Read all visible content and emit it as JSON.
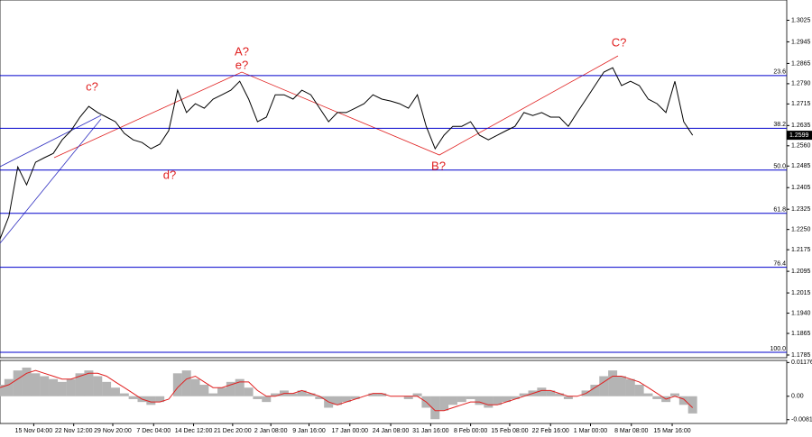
{
  "chart_data": {
    "type": "line",
    "x": [
      0,
      1,
      2,
      3,
      4,
      5,
      6,
      7,
      8,
      9,
      10,
      11,
      12,
      13,
      14,
      15,
      16,
      17,
      18,
      19,
      20,
      21,
      22,
      23,
      24,
      25,
      26,
      27,
      28,
      29,
      30,
      31,
      32,
      33,
      34,
      35,
      36,
      37,
      38,
      39,
      40,
      41,
      42,
      43,
      44,
      45,
      46,
      47,
      48,
      49,
      50,
      51,
      52,
      53,
      54,
      55,
      56,
      57,
      58,
      59,
      60,
      61,
      62,
      63,
      64,
      65,
      66,
      67,
      68,
      69,
      70,
      71,
      72,
      73,
      74,
      75,
      76,
      77,
      78
    ],
    "series": [
      {
        "color": "#000000",
        "values": [
          1.2215,
          1.2298,
          1.2482,
          1.2415,
          1.2499,
          1.2516,
          1.2532,
          1.2582,
          1.2616,
          1.2666,
          1.2706,
          1.2683,
          1.2666,
          1.2649,
          1.2606,
          1.2582,
          1.2572,
          1.2549,
          1.2566,
          1.2616,
          1.2766,
          1.2683,
          1.2716,
          1.2699,
          1.2733,
          1.2749,
          1.2766,
          1.2799,
          1.2733,
          1.2649,
          1.2666,
          1.2749,
          1.2749,
          1.2733,
          1.2766,
          1.2749,
          1.2699,
          1.2649,
          1.2683,
          1.2683,
          1.2699,
          1.2716,
          1.2749,
          1.2733,
          1.2726,
          1.2716,
          1.2699,
          1.2749,
          1.2632,
          1.2549,
          1.2599,
          1.2632,
          1.2632,
          1.2649,
          1.2599,
          1.2582,
          1.2599,
          1.2616,
          1.2632,
          1.2683,
          1.2672,
          1.2683,
          1.2666,
          1.2666,
          1.2632,
          1.2683,
          1.2733,
          1.2783,
          1.2833,
          1.2849,
          1.2783,
          1.2799,
          1.2783,
          1.2733,
          1.2716,
          1.2683,
          1.2799,
          1.2649,
          1.2599
        ]
      }
    ],
    "xlim": [
      0,
      88.6
    ],
    "xticks": [
      {
        "value": 3.8,
        "label": "15 Nov 04:00"
      },
      {
        "value": 8.3,
        "label": "22 Nov 12:00"
      },
      {
        "value": 12.7,
        "label": "29 Nov 20:00"
      },
      {
        "value": 17.3,
        "label": "7 Dec 04:00"
      },
      {
        "value": 21.8,
        "label": "14 Dec 12:00"
      },
      {
        "value": 26.2,
        "label": "21 Dec 20:00"
      },
      {
        "value": 30.5,
        "label": "2 Jan 08:00"
      },
      {
        "value": 34.8,
        "label": "9 Jan 16:00"
      },
      {
        "value": 39.4,
        "label": "17 Jan 00:00"
      },
      {
        "value": 44,
        "label": "24 Jan 08:00"
      },
      {
        "value": 48.5,
        "label": "31 Jan 16:00"
      },
      {
        "value": 53,
        "label": "8 Feb 00:00"
      },
      {
        "value": 57.4,
        "label": "15 Feb 08:00"
      },
      {
        "value": 62,
        "label": "22 Feb 16:00"
      },
      {
        "value": 66.5,
        "label": "1 Mar 00:00"
      },
      {
        "value": 71.1,
        "label": "8 Mar 08:00"
      },
      {
        "value": 75.7,
        "label": "15 Mar 16:00"
      }
    ],
    "ylim": [
      1.1775,
      1.31
    ],
    "yticks": [
      {
        "value": 1.3025,
        "label": "1.3025"
      },
      {
        "value": 1.2945,
        "label": "1.2945"
      },
      {
        "value": 1.2865,
        "label": "1.2865"
      },
      {
        "value": 1.279,
        "label": "1.2790"
      },
      {
        "value": 1.2715,
        "label": "1.2715"
      },
      {
        "value": 1.2635,
        "label": "1.2635"
      },
      {
        "value": 1.256,
        "label": "1.2560"
      },
      {
        "value": 1.2485,
        "label": "1.2485"
      },
      {
        "value": 1.2405,
        "label": "1.2405"
      },
      {
        "value": 1.2325,
        "label": "1.2325"
      },
      {
        "value": 1.225,
        "label": "1.2250"
      },
      {
        "value": 1.2175,
        "label": "1.2175"
      },
      {
        "value": 1.2095,
        "label": "1.2095"
      },
      {
        "value": 1.2015,
        "label": "1.2015"
      },
      {
        "value": 1.194,
        "label": "1.1940"
      },
      {
        "value": 1.1865,
        "label": "1.1865"
      },
      {
        "value": 1.1785,
        "label": "1.1785"
      }
    ],
    "current_price": 1.2599,
    "fib_color": "#0000cc",
    "fib_levels": [
      {
        "value": 1.282,
        "label": "23.6"
      },
      {
        "value": 1.2625,
        "label": "38.2"
      },
      {
        "value": 1.247,
        "label": "50.0"
      },
      {
        "value": 1.231,
        "label": "61.8"
      },
      {
        "value": 1.211,
        "label": "76.4"
      },
      {
        "value": 1.1795,
        "label": "100.0"
      }
    ],
    "annotations": [
      "c?",
      "d?",
      "A?",
      "e?",
      "B?",
      "C?"
    ],
    "macd": {
      "hist_color": "#b4b4b4",
      "signal_color": "#e02020",
      "histogram": [
        0.004,
        0.006,
        0.009,
        0.01,
        0.008,
        0.007,
        0.006,
        0.005,
        0.006,
        0.008,
        0.009,
        0.007,
        0.005,
        0.003,
        0.001,
        -0.001,
        -0.002,
        -0.003,
        -0.002,
        0.0,
        0.008,
        0.009,
        0.006,
        0.004,
        0.001,
        0.003,
        0.005,
        0.006,
        0.003,
        -0.001,
        -0.002,
        0.001,
        0.002,
        0.001,
        0.002,
        0.001,
        -0.001,
        -0.004,
        -0.003,
        -0.002,
        -0.001,
        0.0,
        0.001,
        0.001,
        0.0,
        0.0,
        -0.001,
        0.001,
        -0.004,
        -0.008,
        -0.005,
        -0.003,
        -0.002,
        -0.001,
        -0.003,
        -0.004,
        -0.003,
        -0.002,
        -0.001,
        0.001,
        0.002,
        0.003,
        0.002,
        0.001,
        -0.001,
        0.0,
        0.002,
        0.004,
        0.007,
        0.009,
        0.007,
        0.006,
        0.004,
        0.001,
        -0.001,
        -0.002,
        0.001,
        -0.003,
        -0.006
      ],
      "signal": [
        0.003,
        0.004,
        0.006,
        0.008,
        0.009,
        0.008,
        0.007,
        0.006,
        0.006,
        0.007,
        0.008,
        0.008,
        0.007,
        0.005,
        0.003,
        0.001,
        -0.001,
        -0.002,
        -0.002,
        -0.001,
        0.003,
        0.006,
        0.007,
        0.005,
        0.003,
        0.003,
        0.004,
        0.005,
        0.005,
        0.002,
        0.0,
        0.0,
        0.001,
        0.001,
        0.002,
        0.001,
        0.0,
        -0.002,
        -0.003,
        -0.002,
        -0.001,
        0.0,
        0.001,
        0.001,
        0.0,
        0.0,
        0.0,
        0.0,
        -0.002,
        -0.005,
        -0.005,
        -0.004,
        -0.003,
        -0.002,
        -0.002,
        -0.003,
        -0.003,
        -0.002,
        -0.001,
        0.0,
        0.001,
        0.002,
        0.002,
        0.001,
        0.0,
        0.0,
        0.001,
        0.003,
        0.005,
        0.007,
        0.007,
        0.006,
        0.005,
        0.003,
        0.001,
        -0.001,
        0.0,
        -0.001,
        -0.004
      ],
      "ylim": [
        -0.0095,
        0.0125
      ],
      "yticks": [
        {
          "value": 0.01176,
          "label": "0.01176"
        },
        {
          "value": 0,
          "label": "0.00"
        },
        {
          "value": -0.00817,
          "label": "-0.00817"
        }
      ]
    }
  }
}
